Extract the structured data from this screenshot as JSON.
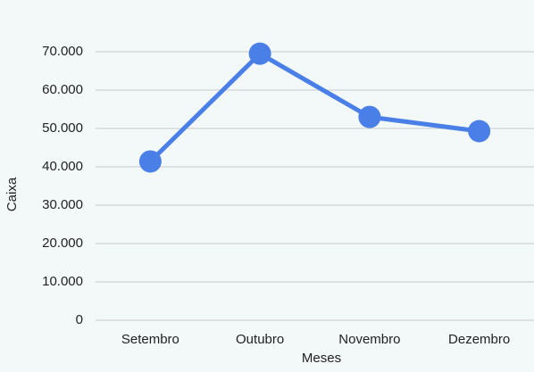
{
  "chart_data": {
    "type": "line",
    "categories": [
      "Setembro",
      "Outubro",
      "Novembro",
      "Dezembro"
    ],
    "series": [
      {
        "name": "Caixa",
        "color": "#4a7fe8",
        "values": [
          41400,
          69500,
          53000,
          49300
        ]
      }
    ],
    "x_label": "Meses",
    "y_label": "Caixa",
    "ylim": [
      0,
      70000
    ],
    "yticks": [
      0,
      {
        "value": 10000,
        "label": "10.000"
      },
      {
        "value": 20000,
        "label": "20.000"
      },
      {
        "value": 30000,
        "label": "30.000"
      },
      {
        "value": 40000,
        "label": "40.000"
      },
      {
        "value": 50000,
        "label": "50.000"
      },
      {
        "value": 60000,
        "label": "60.000"
      },
      {
        "value": 70000,
        "label": "70.000"
      }
    ],
    "grid": true
  }
}
